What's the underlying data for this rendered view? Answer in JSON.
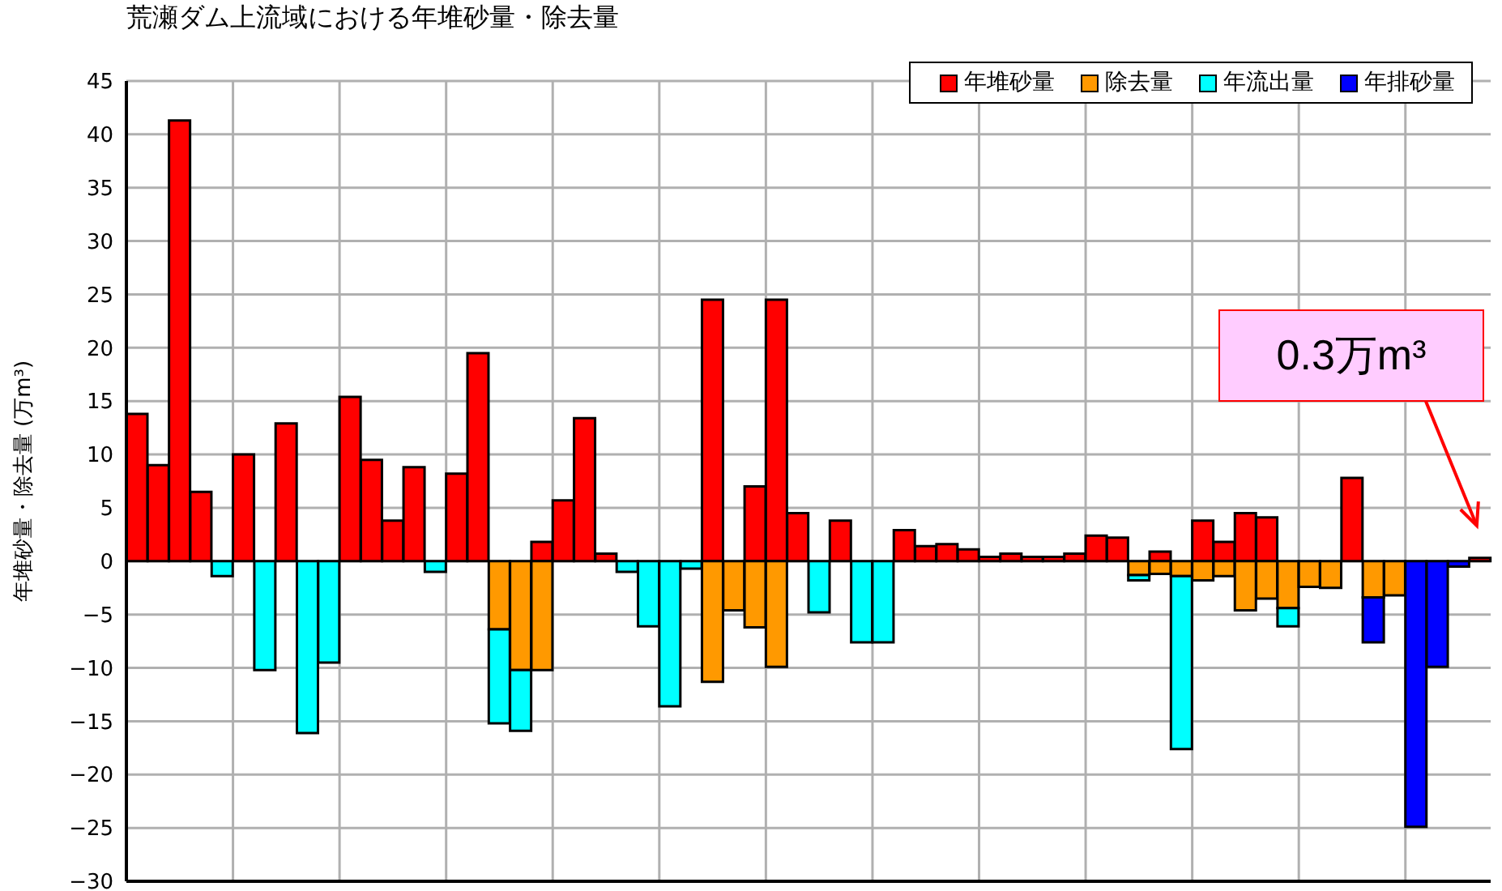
{
  "chart_data": {
    "type": "bar",
    "stacked": true,
    "title": "荒瀬ダム上流域における年堆砂量・除去量",
    "ylabel": "年堆砂量・除去量 (万m³)",
    "categories": [
      null,
      null,
      null,
      null,
      null,
      null,
      null,
      null,
      null,
      null,
      null,
      null,
      null,
      null,
      null,
      null,
      null,
      null,
      null,
      null,
      null,
      null,
      null,
      null,
      null,
      null,
      null,
      null,
      null,
      null,
      null,
      null,
      null,
      null,
      null,
      null,
      null,
      null,
      null,
      null,
      null,
      null,
      null,
      null,
      null,
      null,
      null,
      null,
      null,
      null,
      null,
      null,
      null,
      null,
      null,
      null,
      null,
      null,
      null,
      null,
      null,
      null,
      null,
      null
    ],
    "series": [
      {
        "name": "年堆砂量",
        "color": "#ff0000",
        "values": [
          13.8,
          9,
          41.3,
          6.5,
          null,
          10,
          null,
          12.9,
          null,
          null,
          15.4,
          9.5,
          3.8,
          8.8,
          null,
          8.2,
          19.5,
          null,
          null,
          1.8,
          5.7,
          13.4,
          0.7,
          null,
          null,
          null,
          null,
          24.5,
          null,
          7,
          24.5,
          4.5,
          null,
          3.8,
          null,
          null,
          2.9,
          1.4,
          1.6,
          1.1,
          0.4,
          0.7,
          0.4,
          0.4,
          0.7,
          2.4,
          2.2,
          null,
          0.9,
          null,
          3.8,
          1.8,
          4.5,
          4.1,
          null,
          null,
          null,
          7.8,
          null,
          null,
          null,
          null,
          null,
          0.3
        ]
      },
      {
        "name": "除去量",
        "color": "#ff9900",
        "values": [
          null,
          null,
          null,
          null,
          null,
          null,
          null,
          null,
          null,
          null,
          null,
          null,
          null,
          null,
          null,
          null,
          null,
          -6.4,
          -10.2,
          -10.2,
          null,
          null,
          null,
          null,
          null,
          null,
          null,
          -11.3,
          -4.6,
          -6.2,
          -9.9,
          null,
          null,
          null,
          null,
          null,
          null,
          null,
          null,
          null,
          null,
          null,
          null,
          null,
          null,
          null,
          null,
          -1.3,
          -1.2,
          -1.4,
          -1.8,
          -1.4,
          -4.6,
          -3.5,
          -4.4,
          -2.4,
          -2.5,
          null,
          -3.4,
          -3.2,
          null,
          null,
          null,
          null
        ]
      },
      {
        "name": "年流出量",
        "color": "#00ffff",
        "values": [
          null,
          null,
          null,
          null,
          -1.4,
          null,
          -10.2,
          null,
          -16.1,
          -9.5,
          null,
          null,
          null,
          null,
          -1,
          null,
          null,
          -8.8,
          -5.7,
          null,
          null,
          null,
          null,
          -1,
          -6.1,
          -13.6,
          -0.7,
          null,
          null,
          null,
          null,
          null,
          -4.8,
          null,
          -7.6,
          -7.6,
          null,
          null,
          null,
          null,
          null,
          null,
          null,
          null,
          null,
          null,
          null,
          -0.5,
          null,
          -16.2,
          null,
          null,
          null,
          null,
          -1.7,
          null,
          null,
          null,
          null,
          null,
          null,
          null,
          null,
          null
        ]
      },
      {
        "name": "年排砂量",
        "color": "#0000ff",
        "values": [
          null,
          null,
          null,
          null,
          null,
          null,
          null,
          null,
          null,
          null,
          null,
          null,
          null,
          null,
          null,
          null,
          null,
          null,
          null,
          null,
          null,
          null,
          null,
          null,
          null,
          null,
          null,
          null,
          null,
          null,
          null,
          null,
          null,
          null,
          null,
          null,
          null,
          null,
          null,
          null,
          null,
          null,
          null,
          null,
          null,
          null,
          null,
          null,
          null,
          null,
          null,
          null,
          null,
          null,
          null,
          null,
          null,
          null,
          -4.2,
          null,
          -24.9,
          -9.9,
          -0.5,
          null
        ]
      }
    ],
    "ylim": [
      -30,
      45
    ],
    "yticks": [
      -30,
      -25,
      -20,
      -15,
      -10,
      -5,
      0,
      5,
      10,
      15,
      20,
      25,
      30,
      35,
      40,
      45
    ],
    "grid": true,
    "legend": "top right",
    "annotations": [
      "0.3万m³"
    ]
  }
}
